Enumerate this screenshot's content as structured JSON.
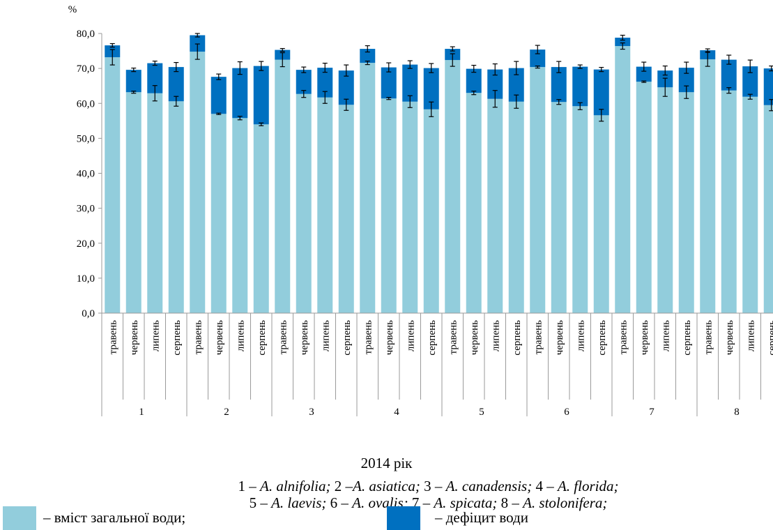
{
  "chart_data": {
    "type": "bar",
    "stacked": true,
    "ylabel": "%",
    "ylim": [
      0,
      80
    ],
    "yticks": [
      "0,0",
      "10,0",
      "20,0",
      "30,0",
      "40,0",
      "50,0",
      "60,0",
      "70,0",
      "80,0"
    ],
    "grid": false,
    "months": [
      "травень",
      "червень",
      "липень",
      "серпень"
    ],
    "groups": [
      "1",
      "2",
      "3",
      "4",
      "5",
      "6",
      "7",
      "8"
    ],
    "series": [
      {
        "name": "вміст загальної води",
        "color": "#92cddc",
        "values": [
          [
            73.2,
            63.2,
            62.9,
            60.6
          ],
          [
            74.8,
            57.0,
            55.8,
            54.0
          ],
          [
            72.5,
            62.7,
            61.7,
            59.6
          ],
          [
            71.6,
            61.4,
            60.5,
            58.3
          ],
          [
            72.4,
            63.0,
            61.3,
            60.5
          ],
          [
            70.4,
            60.4,
            59.2,
            56.6
          ],
          [
            76.4,
            66.2,
            64.6,
            63.2
          ],
          [
            72.6,
            63.7,
            61.9,
            59.5
          ]
        ],
        "errors": [
          [
            2.2,
            0.3,
            2.2,
            1.4
          ],
          [
            2.2,
            0.2,
            0.5,
            0.4
          ],
          [
            2.0,
            1.0,
            1.7,
            1.6
          ],
          [
            0.5,
            0.3,
            1.7,
            2.1
          ],
          [
            1.8,
            0.5,
            2.4,
            1.9
          ],
          [
            0.3,
            0.7,
            1.0,
            1.7
          ],
          [
            0.9,
            0.2,
            2.6,
            1.8
          ],
          [
            2.0,
            0.8,
            0.7,
            1.6
          ]
        ]
      },
      {
        "name": "дефіцит води",
        "color": "#0070c0",
        "values": [
          [
            3.4,
            6.4,
            8.6,
            9.8
          ],
          [
            4.7,
            10.6,
            14.3,
            16.7
          ],
          [
            2.8,
            6.9,
            8.5,
            9.8
          ],
          [
            4.0,
            8.9,
            10.6,
            11.8
          ],
          [
            3.2,
            6.9,
            8.4,
            9.6
          ],
          [
            5.0,
            10.0,
            11.3,
            13.1
          ],
          [
            2.4,
            4.3,
            4.8,
            7.0
          ],
          [
            2.6,
            8.8,
            8.7,
            10.5
          ]
        ],
        "errors": [
          [
            0.5,
            0.5,
            0.6,
            1.3
          ],
          [
            0.5,
            0.8,
            1.8,
            1.3
          ],
          [
            0.4,
            0.8,
            1.3,
            1.6
          ],
          [
            0.9,
            1.3,
            1.1,
            1.3
          ],
          [
            0.6,
            1.0,
            1.6,
            1.9
          ],
          [
            1.2,
            1.6,
            0.5,
            0.6
          ],
          [
            0.7,
            1.3,
            1.3,
            1.6
          ],
          [
            0.4,
            1.3,
            1.8,
            0.7
          ]
        ]
      }
    ],
    "year_label": "2014 рік",
    "species_line1": [
      {
        "num": "1 – ",
        "name": "A. alnifolia;"
      },
      {
        "num": " 2 –",
        "name": "A. asiatica;"
      },
      {
        "num": " 3 – ",
        "name": "A. canadensis;"
      },
      {
        "num": " 4 – ",
        "name": "A. florida;"
      }
    ],
    "species_line2": [
      {
        "num": "5 – ",
        "name": "A. laevis;"
      },
      {
        "num": " 6 – ",
        "name": "A. ovalis;"
      },
      {
        "num": " 7 – ",
        "name": "A. spicata;"
      },
      {
        "num": " 8 – ",
        "name": "A. stolonifera;"
      }
    ],
    "legend": {
      "water_label": "– вміст загальної води;",
      "deficit_label": "– дефіцит води"
    }
  }
}
